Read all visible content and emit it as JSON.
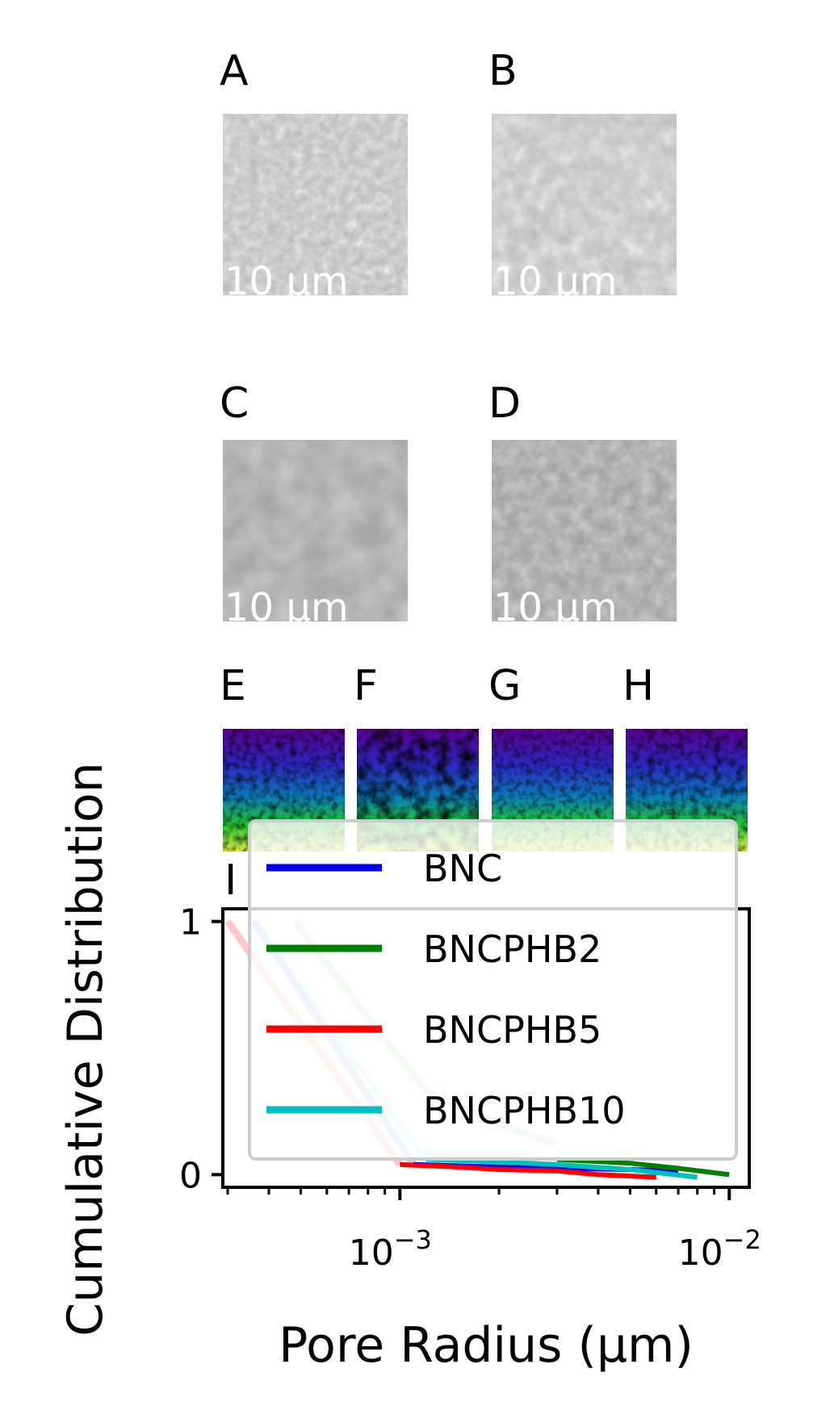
{
  "panels": {
    "sem": [
      {
        "letter": "A",
        "scale_label": "10 µm"
      },
      {
        "letter": "B",
        "scale_label": "10 µm"
      },
      {
        "letter": "C",
        "scale_label": "10 µm"
      },
      {
        "letter": "D",
        "scale_label": "10 µm"
      }
    ],
    "maps": [
      {
        "letter": "E"
      },
      {
        "letter": "F"
      },
      {
        "letter": "G"
      },
      {
        "letter": "H"
      }
    ],
    "chart_letter": "I"
  },
  "chart_data": {
    "type": "line",
    "title": "",
    "xlabel": "Pore Radius (µm)",
    "ylabel": "Cumulative Distribution",
    "xscale": "log",
    "xlim": [
      0.00029,
      0.0115
    ],
    "ylim": [
      -0.05,
      1.05
    ],
    "x_ticks": [
      {
        "value": 0.001,
        "base": "10",
        "exp": "−3"
      },
      {
        "value": 0.01,
        "base": "10",
        "exp": "−2"
      }
    ],
    "y_ticks": [
      0,
      1
    ],
    "legend_position": "upper right",
    "series": [
      {
        "name": "BNC",
        "color": "#0000ee",
        "faint_x": [
          0.00036,
          0.0011
        ],
        "faint_y": [
          1.0,
          0.04
        ],
        "x": [
          0.0011,
          0.002,
          0.003,
          0.005,
          0.007
        ],
        "y": [
          0.04,
          0.03,
          0.025,
          0.02,
          0.015
        ]
      },
      {
        "name": "BNCPHB2",
        "color": "#008000",
        "faint_x": [
          0.00048,
          0.0008,
          0.0012,
          0.002,
          0.003
        ],
        "faint_y": [
          1.0,
          0.62,
          0.33,
          0.2,
          0.12
        ],
        "x": [
          0.003,
          0.005,
          0.007,
          0.01
        ],
        "y": [
          0.06,
          0.045,
          0.025,
          0.0
        ]
      },
      {
        "name": "BNCPHB5",
        "color": "#ff0000",
        "faint_x": [
          0.0003,
          0.001
        ],
        "faint_y": [
          1.0,
          0.04
        ],
        "x": [
          0.001,
          0.0015,
          0.002,
          0.003,
          0.004,
          0.006
        ],
        "y": [
          0.04,
          0.03,
          0.02,
          0.015,
          0.0,
          -0.01
        ]
      },
      {
        "name": "BNCPHB10",
        "color": "#00bfbf",
        "faint_x": [
          0.00036,
          0.0012
        ],
        "faint_y": [
          1.0,
          0.06
        ],
        "x": [
          0.0012,
          0.002,
          0.003,
          0.005,
          0.008
        ],
        "y": [
          0.06,
          0.05,
          0.04,
          0.02,
          -0.01
        ]
      }
    ]
  }
}
